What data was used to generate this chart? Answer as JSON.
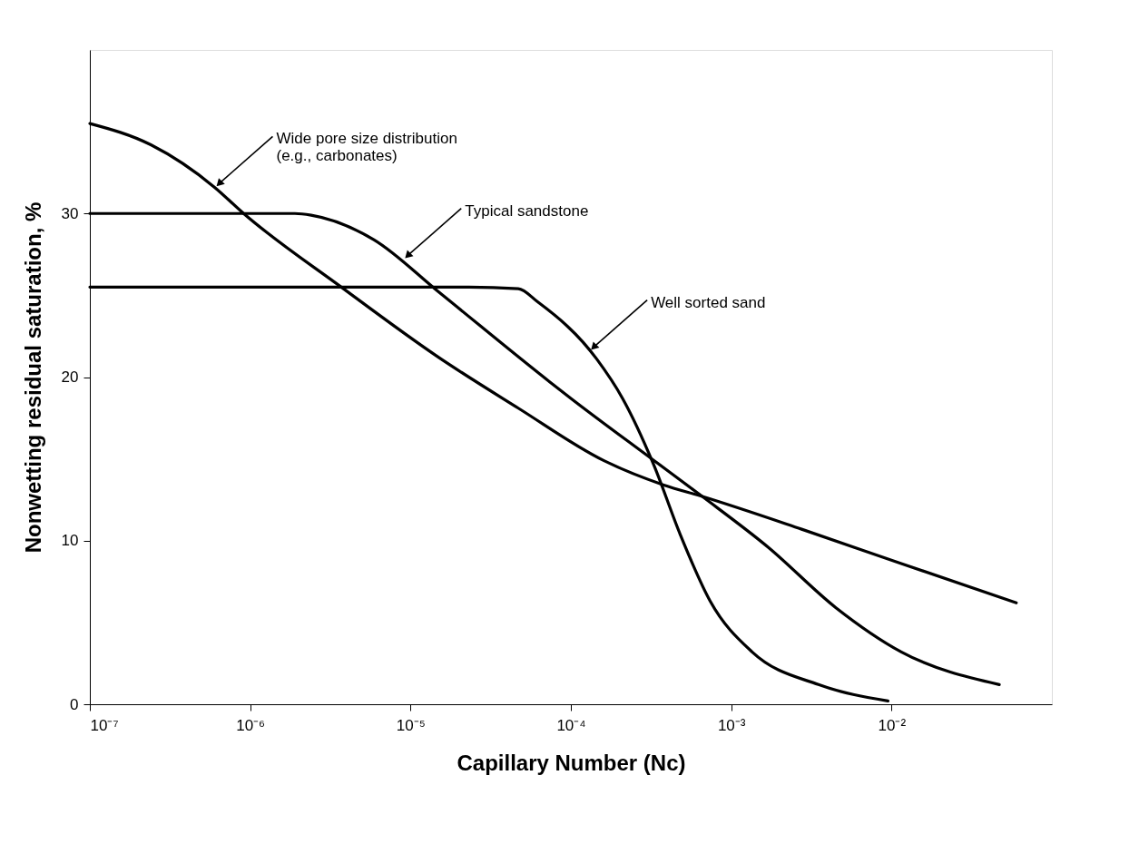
{
  "chart_data": {
    "type": "line",
    "xlabel": "Capillary Number (Nc)",
    "ylabel": "Nonwetting residual saturation, %",
    "log": "x",
    "xlim": [
      1e-07,
      0.1
    ],
    "xticks": [
      {
        "value": 1e-07,
        "label": "10⁻⁷"
      },
      {
        "value": 1e-06,
        "label": "10⁻⁶"
      },
      {
        "value": 1e-05,
        "label": "10⁻⁵"
      },
      {
        "value": 0.0001,
        "label": "10⁻⁴"
      },
      {
        "value": 0.001,
        "label": "10⁻³"
      },
      {
        "value": 0.01,
        "label": "10⁻²"
      }
    ],
    "ylim": [
      0,
      40
    ],
    "yticks": [
      0,
      10,
      20,
      30
    ],
    "grid": false,
    "marker": "none",
    "line_style": "solid",
    "series": [
      {
        "color": "#000000",
        "x": [
          1e-07,
          2.4e-07,
          6e-07,
          9.1e-07,
          3.7e-06,
          1.5e-05,
          4.7e-05,
          0.00016,
          0.00038,
          0.00066,
          0.00275,
          0.0115,
          0.06
        ],
        "values": [
          35.5,
          34.2,
          31.6,
          30,
          25.5,
          21.2,
          18.1,
          14.9,
          13.4,
          12.7,
          10.7,
          8.6,
          6.2
        ]
      },
      {
        "color": "#000000",
        "x": [
          1e-07,
          1.9e-06,
          2.4e-06,
          5.9e-06,
          1.5e-05,
          7.4e-05,
          0.0001,
          0.00033,
          0.00066,
          0.0017,
          0.0045,
          0.0115,
          0.047
        ],
        "values": [
          30,
          30,
          29.9,
          28.4,
          25.2,
          19.7,
          18.7,
          14.9,
          12.7,
          9.6,
          5.9,
          3.2,
          1.2
        ]
      },
      {
        "color": "#000000",
        "x": [
          1e-07,
          2.3e-05,
          4.7e-05,
          6.2e-05,
          0.000145,
          0.00021,
          0.00033,
          0.00048,
          0.00074,
          0.00135,
          0.0035,
          0.0095
        ],
        "values": [
          25.5,
          25.5,
          25.4,
          24.6,
          21.1,
          18.7,
          14.6,
          10.4,
          6.3,
          3.2,
          1.2,
          0.2
        ]
      }
    ],
    "annotations": [
      {
        "text": "Wide pore size distribution\n(e.g., carbonates)",
        "x": 6e-07,
        "y": 31.6
      },
      {
        "text": "Typical sandstone",
        "x": 9e-06,
        "y": 27.2
      },
      {
        "text": "Well sorted sand",
        "x": 0.00013,
        "y": 21.6
      }
    ]
  }
}
